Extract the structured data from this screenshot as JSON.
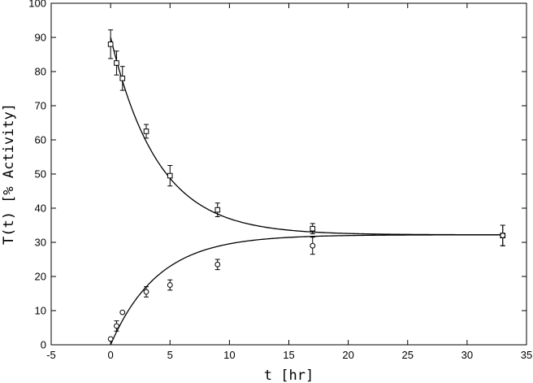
{
  "chart_data": {
    "type": "scatter",
    "title": "",
    "xlabel": "t [hr]",
    "ylabel": "T(t) [% Activity]",
    "xlim": [
      -5,
      35
    ],
    "ylim": [
      0,
      100
    ],
    "xticks": [
      -5,
      0,
      5,
      10,
      15,
      20,
      25,
      30,
      35
    ],
    "yticks": [
      0,
      10,
      20,
      30,
      40,
      50,
      60,
      70,
      80,
      90,
      100
    ],
    "grid": false,
    "legend": "none",
    "series": [
      {
        "marker": "square",
        "points": [
          {
            "x": 0,
            "y": 88,
            "err": 4.2
          },
          {
            "x": 0.5,
            "y": 82.5,
            "err": 3.5
          },
          {
            "x": 1,
            "y": 78,
            "err": 3.5
          },
          {
            "x": 3,
            "y": 62.5,
            "err": 2.0
          },
          {
            "x": 5,
            "y": 49.5,
            "err": 3.0
          },
          {
            "x": 9,
            "y": 39.5,
            "err": 2.0
          },
          {
            "x": 17,
            "y": 34,
            "err": 1.5
          },
          {
            "x": 33,
            "y": 32,
            "err": 3.0
          }
        ],
        "fit_curve": {
          "x": [
            0,
            33
          ],
          "y_start": 90,
          "y_end": 32.2
        }
      },
      {
        "marker": "circle",
        "points": [
          {
            "x": 0,
            "y": 1.7,
            "err": 0
          },
          {
            "x": 0.5,
            "y": 5.5,
            "err": 1.5
          },
          {
            "x": 1,
            "y": 9.5,
            "err": 0
          },
          {
            "x": 3,
            "y": 15.5,
            "err": 1.5
          },
          {
            "x": 5,
            "y": 17.5,
            "err": 1.5
          },
          {
            "x": 9,
            "y": 23.5,
            "err": 1.5
          },
          {
            "x": 17,
            "y": 29,
            "err": 2.5
          },
          {
            "x": 33,
            "y": 32,
            "err": 3.0
          }
        ],
        "fit_curve": {
          "x": [
            0,
            33
          ],
          "y_start": 0,
          "y_end": 32.2
        }
      }
    ],
    "fit_rate_per_hr": 0.25
  }
}
